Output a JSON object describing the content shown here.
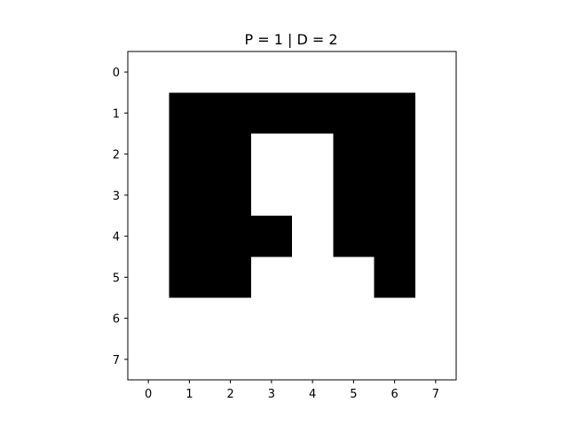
{
  "chart_data": {
    "type": "heatmap",
    "title": "P = 1 | D = 2",
    "xlabel": "",
    "ylabel": "",
    "x_ticks": [
      "0",
      "1",
      "2",
      "3",
      "4",
      "5",
      "6",
      "7"
    ],
    "y_ticks": [
      "0",
      "1",
      "2",
      "3",
      "4",
      "5",
      "6",
      "7"
    ],
    "xlim": [
      -0.5,
      7.5
    ],
    "ylim": [
      7.5,
      -0.5
    ],
    "y_axis_inverted": true,
    "colormap": "gray",
    "grid": false,
    "value_colors": {
      "0": "#000000",
      "1": "#ffffff"
    },
    "matrix": [
      [
        1,
        1,
        1,
        1,
        1,
        1,
        1,
        1
      ],
      [
        1,
        0,
        0,
        0,
        0,
        0,
        0,
        1
      ],
      [
        1,
        0,
        0,
        1,
        1,
        0,
        0,
        1
      ],
      [
        1,
        0,
        0,
        1,
        1,
        0,
        0,
        1
      ],
      [
        1,
        0,
        0,
        0,
        1,
        0,
        0,
        1
      ],
      [
        1,
        0,
        0,
        1,
        1,
        1,
        0,
        1
      ],
      [
        1,
        1,
        1,
        1,
        1,
        1,
        1,
        1
      ],
      [
        1,
        1,
        1,
        1,
        1,
        1,
        1,
        1
      ]
    ]
  }
}
